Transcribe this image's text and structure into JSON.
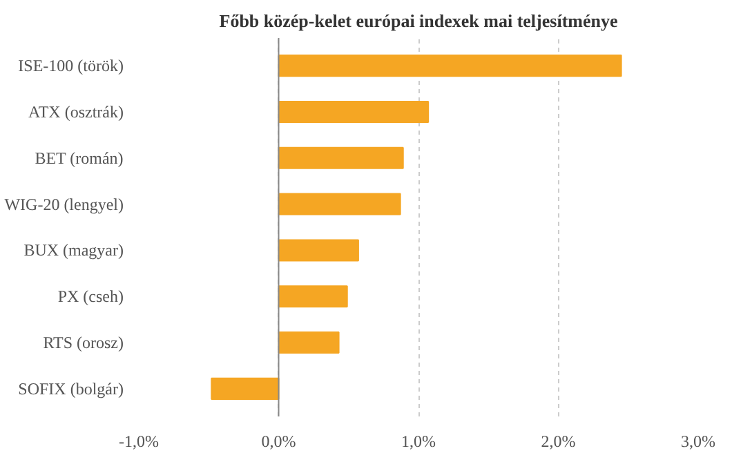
{
  "chart_data": {
    "type": "bar",
    "orientation": "horizontal",
    "title": "Főbb közép-kelet európai indexek mai teljesítménye",
    "categories": [
      "ISE-100 (török)",
      "ATX (osztrák)",
      "BET (román)",
      "WIG-20 (lengyel)",
      "BUX (magyar)",
      "PX (cseh)",
      "RTS (orosz)",
      "SOFIX (bolgár)"
    ],
    "values": [
      2.45,
      1.07,
      0.89,
      0.87,
      0.57,
      0.49,
      0.43,
      -0.48
    ],
    "color": "#f5a623",
    "xlim": [
      -1,
      3
    ],
    "xticks": [
      {
        "value": -1,
        "label": "-1,0%"
      },
      {
        "value": 0,
        "label": "0,0%"
      },
      {
        "value": 1,
        "label": "1,0%"
      },
      {
        "value": 2,
        "label": "2,0%"
      },
      {
        "value": 3,
        "label": "3,0%"
      }
    ],
    "grid": "x"
  }
}
